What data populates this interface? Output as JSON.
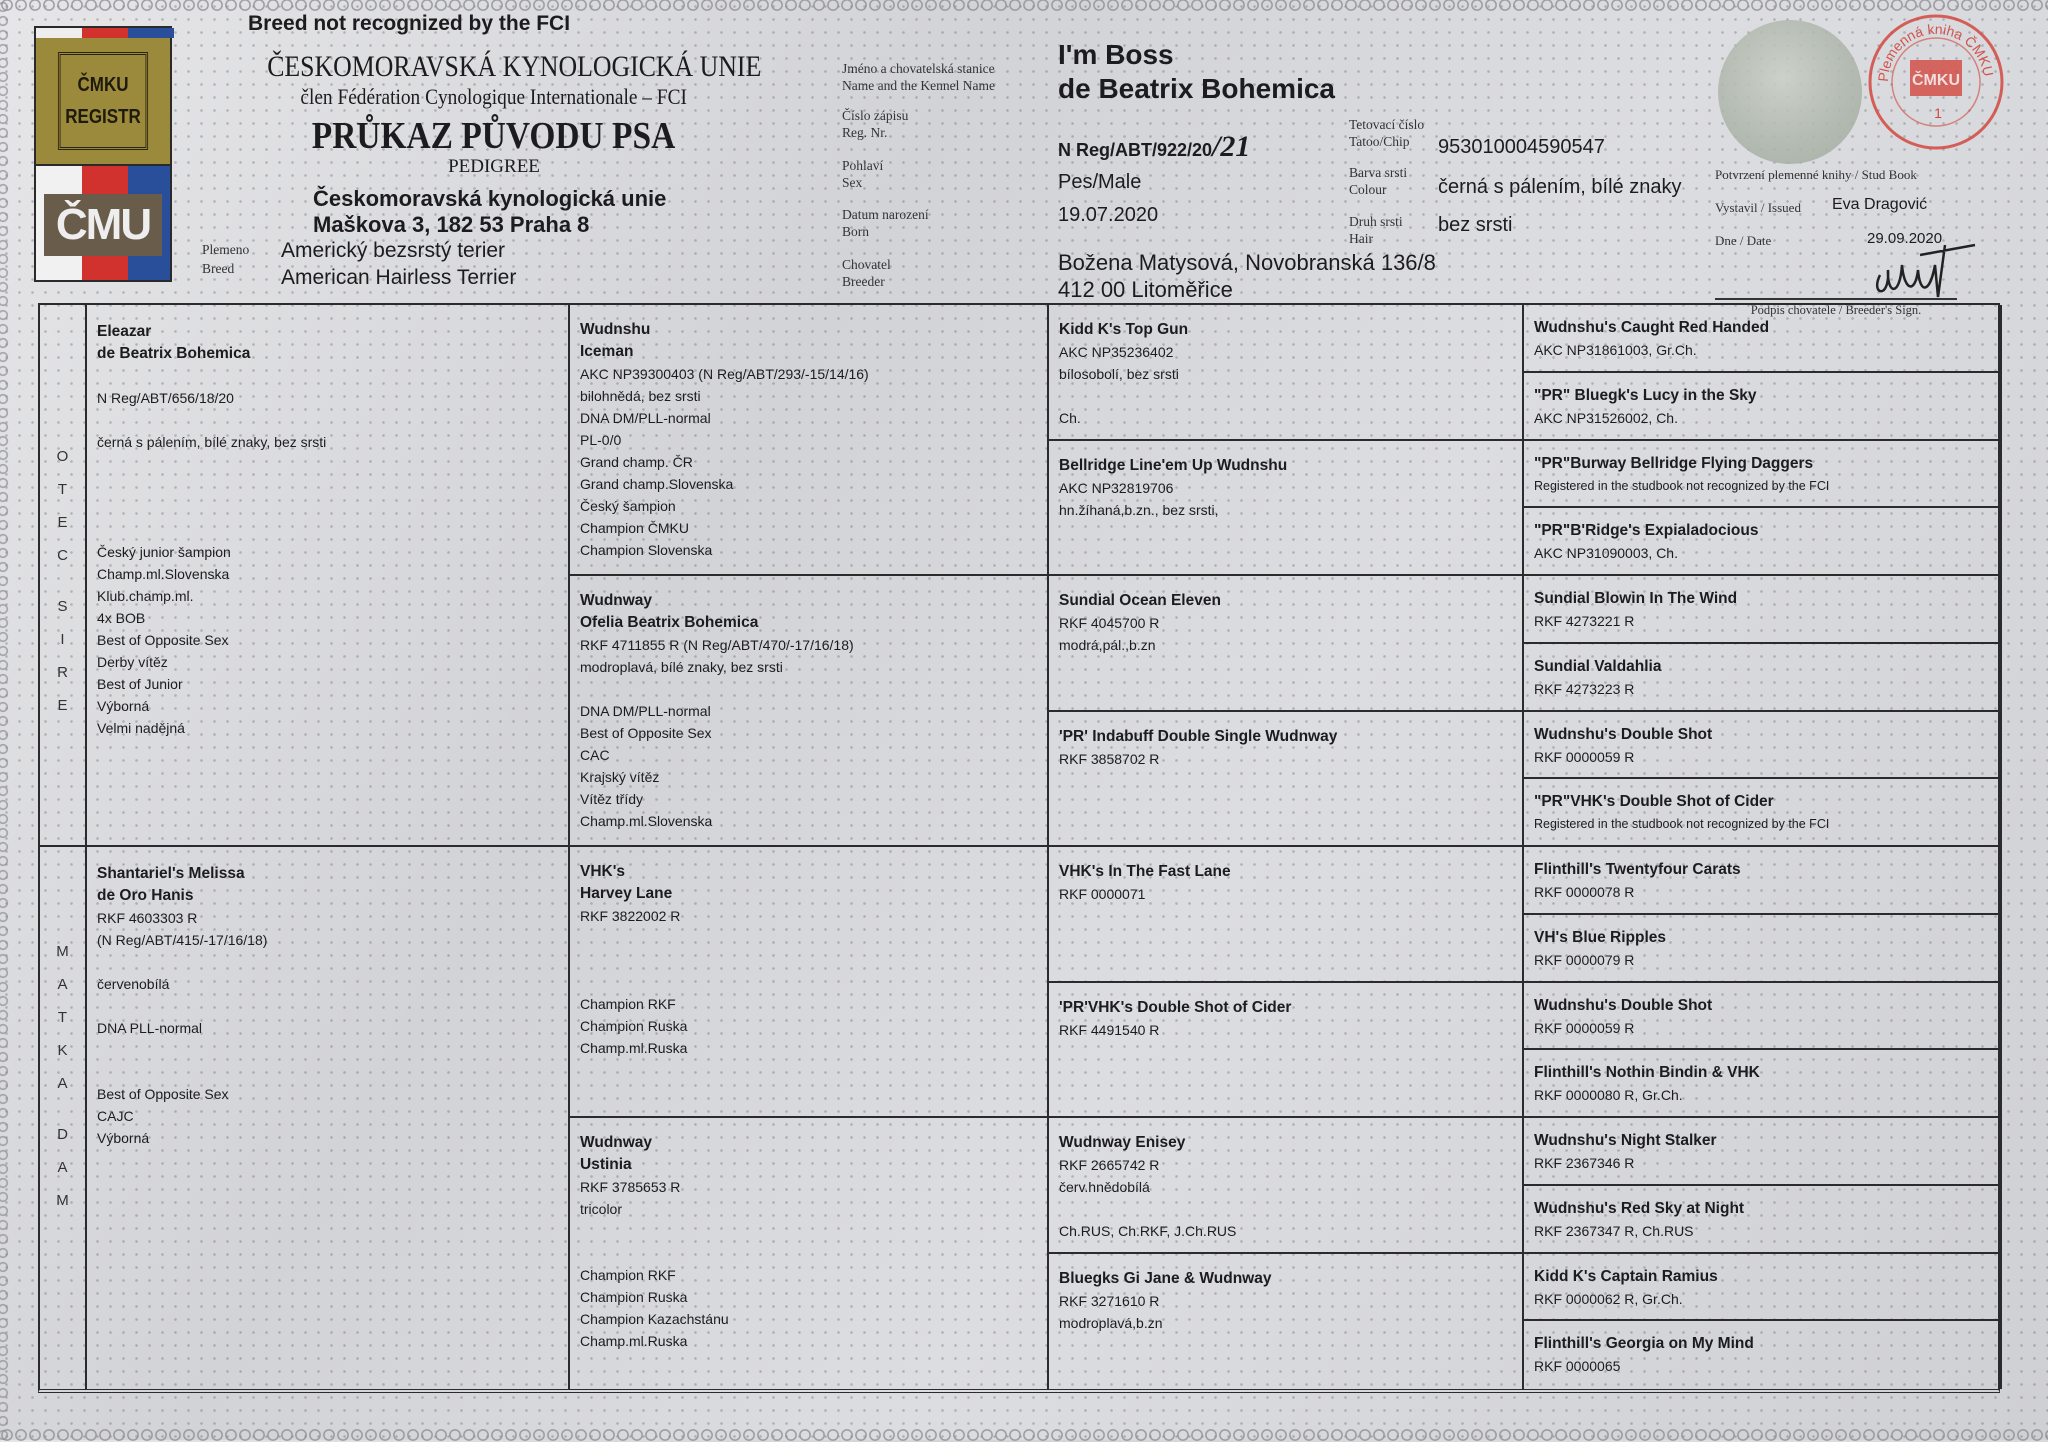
{
  "logo": {
    "top_text": [
      "ČMKU",
      "REGISTR"
    ],
    "bottom_text": "ČMU",
    "colors": {
      "gold": "#9c8a3c",
      "red": "#d2322d",
      "blue": "#2a4f9a",
      "brown": "#6a5c4a"
    }
  },
  "header": {
    "notice": "Breed not recognized by the FCI",
    "org_name": "ČESKOMORAVSKÁ KYNOLOGICKÁ UNIE",
    "fci_member": "člen Fédération Cynologique Internationale – FCI",
    "title": "PRŮKAZ PŮVODU PSA",
    "subtitle": "PEDIGREE",
    "issuer": [
      "Českomoravská kynologická unie",
      "Maškova 3, 182 53 Praha 8"
    ],
    "breed_label": [
      "Plemeno",
      "Breed"
    ],
    "breed_value": [
      "Americký bezsrstý terier",
      "American Hairless Terrier"
    ]
  },
  "dog": {
    "name_label": [
      "Jméno a chovatelská stanice",
      "Name and the Kennel Name"
    ],
    "name": [
      "I'm Boss",
      "de Beatrix Bohemica"
    ],
    "reg_label": [
      "Číslo zápisu",
      "Reg. Nr."
    ],
    "reg": "N Reg/ABT/922/20",
    "reg_handwritten": "/21",
    "sex_label": [
      "Pohlaví",
      "Sex"
    ],
    "sex": "Pes/Male",
    "born_label": [
      "Datum narození",
      "Born"
    ],
    "born": "19.07.2020",
    "breeder_label": [
      "Chovatel",
      "Breeder"
    ],
    "breeder": [
      "Božena Matysová, Novobranská 136/8",
      "412 00 Litoměřice"
    ],
    "chip_label": [
      "Tetovací číslo",
      "Tatoo/Chip"
    ],
    "chip": "953010004590547",
    "colour_label": [
      "Barva srsti",
      "Colour"
    ],
    "colour": "černá s pálením, bílé znaky",
    "hair_label": [
      "Druh srsti",
      "Hair"
    ],
    "hair": "bez srsti"
  },
  "studbook": {
    "confirm_label": "Potvrzení plemenné knihy / Stud Book",
    "issued_label": "Vystavil / Issued",
    "issued_by": "Eva Dragović",
    "date_label": "Dne / Date",
    "date": "29.09.2020",
    "sign_label": "Podpis chovatele / Breeder's Sign.",
    "stamp_text": "Plemenná kniha ČMKU",
    "stamp_mark": "ČMKU",
    "stamp_number": "1",
    "stamp_color": "#d2463f"
  },
  "pedigree": {
    "sire_side": [
      "OTEC",
      "SIRE"
    ],
    "dam_side": [
      "MATKA",
      "DAM"
    ],
    "generations": [
      [
        {
          "name": [
            "Eleazar",
            "de Beatrix Bohemica"
          ],
          "lines": [
            "",
            "N Reg/ABT/656/18/20",
            "",
            "černá s pálením, bílé znaky, bez srsti",
            "",
            "",
            "",
            "",
            "Český junior šampion",
            "Champ.ml.Slovenska",
            "Klub.champ.ml.",
            "4x BOB",
            "Best of Opposite Sex",
            "Derby vítěz",
            "Best of Junior",
            "Výborná",
            "Velmi nadějná"
          ]
        },
        {
          "name": [
            "Shantariel's Melissa",
            "de Oro Hanis"
          ],
          "lines": [
            "RKF 4603303 R",
            "(N Reg/ABT/415/-17/16/18)",
            "",
            "červenobílá",
            "",
            "DNA PLL-normal",
            "",
            "",
            "Best of Opposite Sex",
            "CAJC",
            "Výborná"
          ]
        }
      ],
      [
        {
          "name": [
            "Wudnshu",
            "Iceman"
          ],
          "lines": [
            "AKC NP39300403 (N Reg/ABT/293/-15/14/16)",
            "bilohnědá, bez srsti",
            "DNA DM/PLL-normal",
            "PL-0/0",
            "Grand champ. ČR",
            "Grand champ.Slovenska",
            "Český šampion",
            "Champion ČMKU",
            "Champion Slovenska"
          ]
        },
        {
          "name": [
            "Wudnway",
            "Ofelia Beatrix Bohemica"
          ],
          "lines": [
            "RKF 4711855 R (N Reg/ABT/470/-17/16/18)",
            "modroplavá, bílé znaky, bez srsti",
            "",
            "DNA DM/PLL-normal",
            "Best of Opposite Sex",
            "CAC",
            "Krajský vítěz",
            "Vítěz třídy",
            "Champ.ml.Slovenska"
          ]
        },
        {
          "name": [
            "VHK's",
            "Harvey Lane"
          ],
          "lines": [
            "RKF 3822002 R",
            "",
            "",
            "",
            "Champion RKF",
            "Champion Ruska",
            "Champ.ml.Ruska"
          ]
        },
        {
          "name": [
            "Wudnway",
            "Ustinia"
          ],
          "lines": [
            "RKF 3785653 R",
            "tricolor",
            "",
            "",
            "Champion RKF",
            "Champion Ruska",
            "Champion Kazachstánu",
            "Champ.ml.Ruska"
          ]
        }
      ],
      [
        {
          "name": [
            "Kidd K's Top Gun"
          ],
          "lines": [
            "AKC NP35236402",
            "bílosobolí, bez srsti",
            "",
            "Ch."
          ]
        },
        {
          "name": [
            "Bellridge Line'em Up Wudnshu"
          ],
          "lines": [
            "AKC NP32819706",
            "hn.žíhaná,b.zn., bez srsti,"
          ]
        },
        {
          "name": [
            "Sundial Ocean Eleven"
          ],
          "lines": [
            "RKF 4045700 R",
            "modrá,pál.,b.zn"
          ]
        },
        {
          "name": [
            "'PR' Indabuff Double Single Wudnway"
          ],
          "lines": [
            "RKF 3858702 R"
          ]
        },
        {
          "name": [
            "VHK's In The Fast Lane"
          ],
          "lines": [
            "RKF 0000071"
          ]
        },
        {
          "name": [
            "'PR'VHK's Double Shot of Cider"
          ],
          "lines": [
            "RKF 4491540 R"
          ]
        },
        {
          "name": [
            "Wudnway Enisey"
          ],
          "lines": [
            "RKF 2665742 R",
            "červ.hnědobílá",
            "",
            "Ch.RUS, Ch.RKF, J.Ch.RUS"
          ]
        },
        {
          "name": [
            "Bluegks Gi Jane & Wudnway"
          ],
          "lines": [
            "RKF 3271610 R",
            "modroplavá,b.zn"
          ]
        }
      ],
      [
        {
          "name": [
            "Wudnshu's Caught Red Handed"
          ],
          "lines": [
            "AKC NP31861003, Gr.Ch."
          ]
        },
        {
          "name": [
            "\"PR\" Bluegk's Lucy in the Sky"
          ],
          "lines": [
            "AKC NP31526002, Ch."
          ]
        },
        {
          "name": [
            "\"PR\"Burway Bellridge Flying Daggers"
          ],
          "note": "Registered in the studbook not recognized by the FCI"
        },
        {
          "name": [
            "\"PR\"B'Ridge's Expialadocious"
          ],
          "lines": [
            "AKC NP31090003, Ch."
          ]
        },
        {
          "name": [
            "Sundial Blowin In The Wind"
          ],
          "lines": [
            "RKF 4273221 R"
          ]
        },
        {
          "name": [
            "Sundial Valdahlia"
          ],
          "lines": [
            "RKF 4273223 R"
          ]
        },
        {
          "name": [
            "Wudnshu's Double Shot"
          ],
          "lines": [
            "RKF 0000059 R"
          ]
        },
        {
          "name": [
            "\"PR\"VHK's Double Shot of Cider"
          ],
          "note": "Registered in the studbook not recognized by the FCI"
        },
        {
          "name": [
            "Flinthill's Twentyfour Carats"
          ],
          "lines": [
            "RKF 0000078 R"
          ]
        },
        {
          "name": [
            "VH's Blue Ripples"
          ],
          "lines": [
            "RKF 0000079 R"
          ]
        },
        {
          "name": [
            "Wudnshu's Double Shot"
          ],
          "lines": [
            "RKF 0000059 R"
          ]
        },
        {
          "name": [
            "Flinthill's Nothin Bindin & VHK"
          ],
          "lines": [
            "RKF 0000080 R, Gr.Ch."
          ]
        },
        {
          "name": [
            "Wudnshu's Night Stalker"
          ],
          "lines": [
            "RKF 2367346 R"
          ]
        },
        {
          "name": [
            "Wudnshu's Red Sky at Night"
          ],
          "lines": [
            "RKF 2367347 R, Ch.RUS"
          ]
        },
        {
          "name": [
            "Kidd K's Captain Ramius"
          ],
          "lines": [
            "RKF 0000062 R, Gr.Ch."
          ]
        },
        {
          "name": [
            "Flinthill's Georgia on My Mind"
          ],
          "lines": [
            "RKF 0000065"
          ]
        }
      ]
    ]
  }
}
